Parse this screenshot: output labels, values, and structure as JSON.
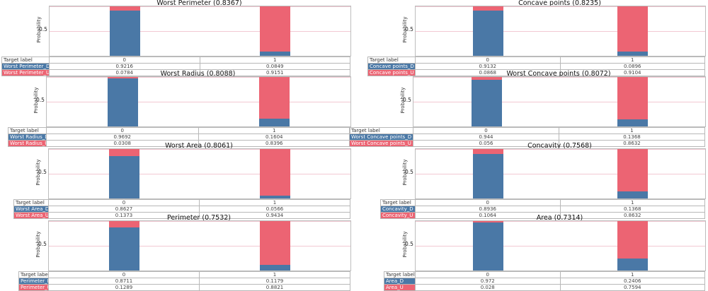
{
  "colors": {
    "D": "#4a78a6",
    "U": "#ec6473"
  },
  "common": {
    "target_label": "Target label",
    "ylabel": "Probability",
    "ytick": "0.5",
    "xticks": [
      "0",
      "1"
    ]
  },
  "chart_data": [
    {
      "type": "bar",
      "title": "Worst Perimeter (0.8367)",
      "categories": [
        "0",
        "1"
      ],
      "ylabel": "Probability",
      "ylim": [
        0,
        1
      ],
      "series": [
        {
          "name": "Worst Perimeter_D",
          "values": [
            0.9216,
            0.0849
          ]
        },
        {
          "name": "Worst Perimeter_U",
          "values": [
            0.0784,
            0.9151
          ]
        }
      ]
    },
    {
      "type": "bar",
      "title": "Concave points (0.8235)",
      "categories": [
        "0",
        "1"
      ],
      "ylabel": "Probability",
      "ylim": [
        0,
        1
      ],
      "series": [
        {
          "name": "Concave points_D",
          "values": [
            0.9132,
            0.0896
          ]
        },
        {
          "name": "Concave points_U",
          "values": [
            0.0868,
            0.9104
          ]
        }
      ]
    },
    {
      "type": "bar",
      "title": "Worst Radius (0.8088)",
      "categories": [
        "0",
        "1"
      ],
      "ylabel": "Probability",
      "ylim": [
        0,
        1
      ],
      "series": [
        {
          "name": "Worst Radius_D",
          "values": [
            0.9692,
            0.1604
          ]
        },
        {
          "name": "Worst Radius_U",
          "values": [
            0.0308,
            0.8396
          ]
        }
      ]
    },
    {
      "type": "bar",
      "title": "Worst Concave points (0.8072)",
      "categories": [
        "0",
        "1"
      ],
      "ylabel": "Probability",
      "ylim": [
        0,
        1
      ],
      "series": [
        {
          "name": "Worst Concave points_D",
          "values": [
            0.944,
            0.1368
          ]
        },
        {
          "name": "Worst Concave points_U",
          "values": [
            0.056,
            0.8632
          ]
        }
      ]
    },
    {
      "type": "bar",
      "title": "Worst Area (0.8061)",
      "categories": [
        "0",
        "1"
      ],
      "ylabel": "Probability",
      "ylim": [
        0,
        1
      ],
      "series": [
        {
          "name": "Worst Area_D",
          "values": [
            0.8627,
            0.0566
          ]
        },
        {
          "name": "Worst Area_U",
          "values": [
            0.1373,
            0.9434
          ]
        }
      ]
    },
    {
      "type": "bar",
      "title": "Concavity (0.7568)",
      "categories": [
        "0",
        "1"
      ],
      "ylabel": "Probability",
      "ylim": [
        0,
        1
      ],
      "series": [
        {
          "name": "Concavity_D",
          "values": [
            0.8936,
            0.1368
          ]
        },
        {
          "name": "Concavity_U",
          "values": [
            0.1064,
            0.8632
          ]
        }
      ]
    },
    {
      "type": "bar",
      "title": "Perimeter (0.7532)",
      "categories": [
        "0",
        "1"
      ],
      "ylabel": "Probability",
      "ylim": [
        0,
        1
      ],
      "series": [
        {
          "name": "Perimeter_D",
          "values": [
            0.8711,
            0.1179
          ]
        },
        {
          "name": "Perimeter_U",
          "values": [
            0.1289,
            0.8821
          ]
        }
      ]
    },
    {
      "type": "bar",
      "title": "Area (0.7314)",
      "categories": [
        "0",
        "1"
      ],
      "ylabel": "Probability",
      "ylim": [
        0,
        1
      ],
      "series": [
        {
          "name": "Area_D",
          "values": [
            0.972,
            0.2406
          ]
        },
        {
          "name": "Area_U",
          "values": [
            0.028,
            0.7594
          ]
        }
      ]
    }
  ]
}
